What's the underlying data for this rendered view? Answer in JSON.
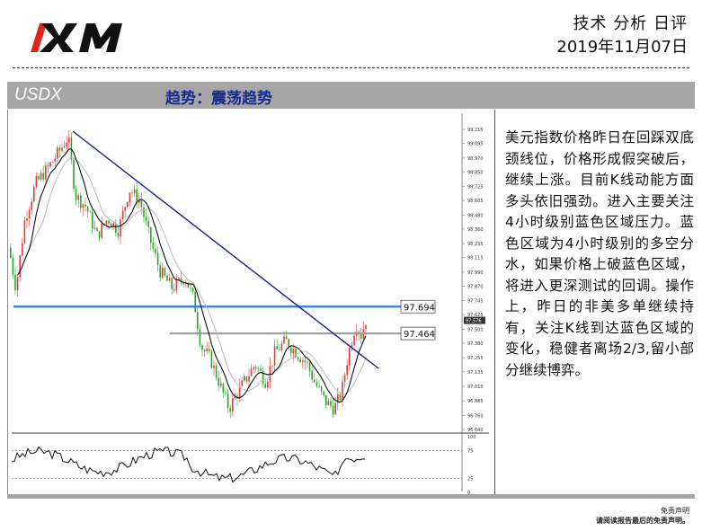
{
  "header": {
    "report_type": "技术 分析 日评",
    "date": "2019年11月07日"
  },
  "title_bar": {
    "symbol": "USDX",
    "trend": "趋势：震荡趋势"
  },
  "chart_data": {
    "type": "candlestick",
    "y_ticks": [
      "99.215",
      "99.095",
      "98.970",
      "98.850",
      "98.725",
      "98.605",
      "98.480",
      "98.360",
      "98.235",
      "98.115",
      "97.990",
      "97.870",
      "97.745",
      "97.625",
      "97.500",
      "97.380",
      "97.255",
      "97.135",
      "97.010",
      "96.885",
      "96.760",
      "96.640"
    ],
    "ylim": [
      96.64,
      99.215
    ],
    "current_price": "97.576",
    "levels": [
      {
        "label": "97.694",
        "value": 97.694,
        "color": "#2f7df0"
      },
      {
        "label": "97.464",
        "value": 97.464,
        "color": "#999999"
      }
    ],
    "indicator_ticks": [
      "100",
      "75",
      "25",
      "0"
    ],
    "colors": {
      "up": "#e03a3a",
      "down": "#2aa52a",
      "trendline": "#1a1a9a",
      "ma_fast": "#111111",
      "ma_slow": "#bbbbbb"
    }
  },
  "commentary": "美元指数价格昨日在回踩双底颈线位，价格形成假突破后，继续上涨。目前K线动能方面多头依旧强劲。进入主要关注4小时级别蓝色区域压力。蓝色区域为4小时级别的多空分水，如果价格上破蓝色区域，将进入更深测试的回调。操作上，昨日的非美多单继续持有，关注K线到达蓝色区域的变化，稳健者离场2/3,留小部分继续博弈。",
  "footer": {
    "disclaimer_title": "免责声明",
    "disclaimer_text": "请阅读报告最后的免责声明。"
  }
}
